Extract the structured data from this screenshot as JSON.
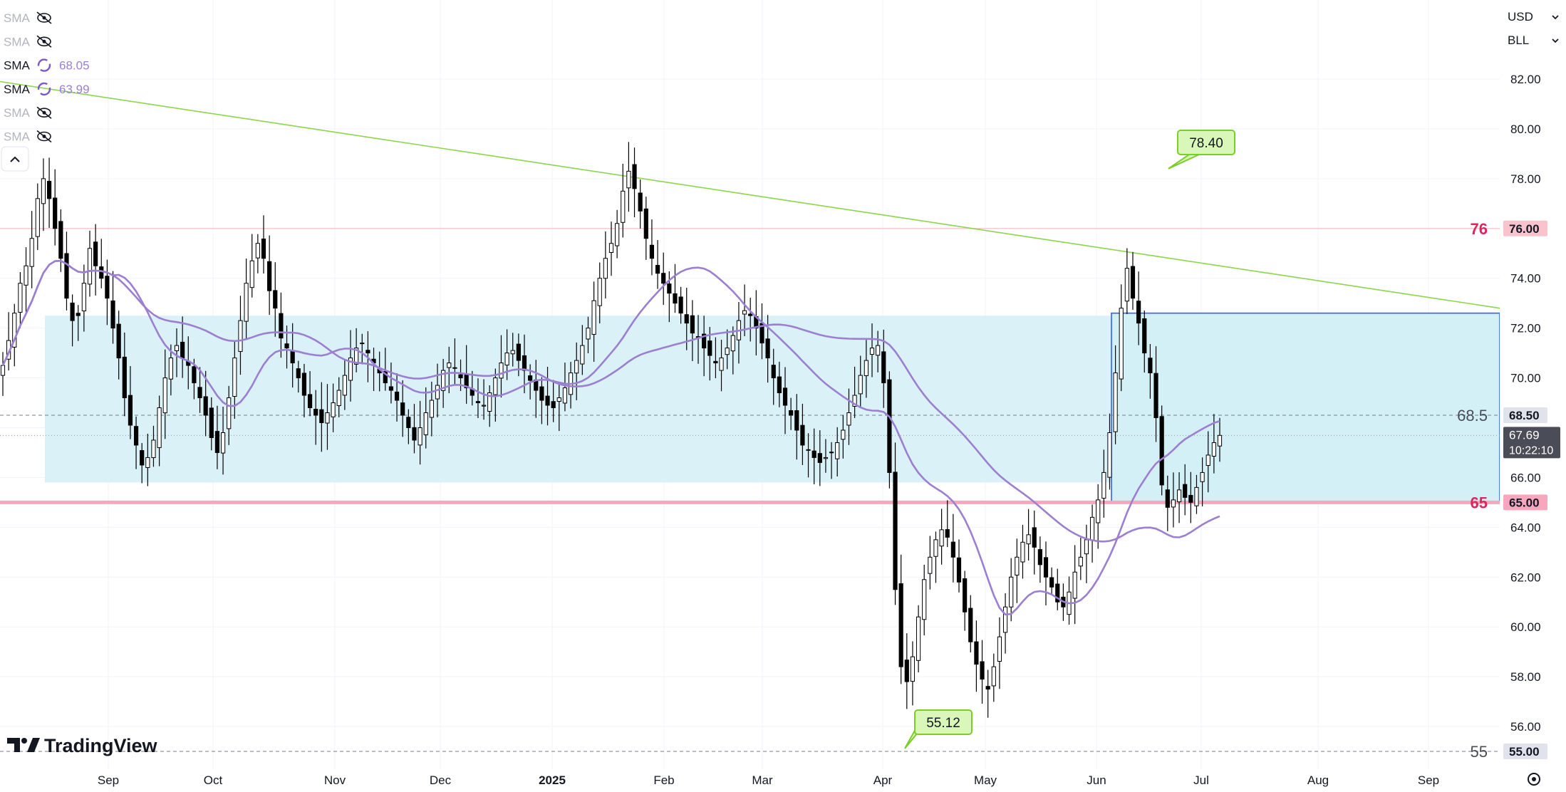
{
  "header": {
    "currency": "USD",
    "unit": "BLL",
    "dropdown_icon": "chevron-down-icon",
    "collapse_icon": "chevron-up-icon"
  },
  "indicators": [
    {
      "label": "SMA",
      "icon": "eye-off-icon",
      "value": "",
      "visible": false
    },
    {
      "label": "SMA",
      "icon": "eye-off-icon",
      "value": "",
      "visible": false
    },
    {
      "label": "SMA",
      "icon": "loading-icon",
      "value": "68.05",
      "visible": true
    },
    {
      "label": "SMA",
      "icon": "loading-icon",
      "value": "63.99",
      "visible": true
    },
    {
      "label": "SMA",
      "icon": "eye-off-icon",
      "value": "",
      "visible": false
    },
    {
      "label": "SMA",
      "icon": "eye-off-icon",
      "value": "",
      "visible": false
    }
  ],
  "brand": {
    "name": "TradingView",
    "logo_icon": "tradingview-logo-icon"
  },
  "settings_icon": "settings-gear-icon",
  "colors": {
    "up_candle": "#ffffff",
    "down_candle": "#000000",
    "sma_line": "#9c7fd0",
    "trend_line": "#8bd64a",
    "zone_fill": "#daf1f7",
    "box_border": "#2962ff",
    "support_line": "#f7a6bd",
    "resistance_line": "#f8c3cc",
    "level_label": "#e0245e",
    "callout_fill": "#d9f7b8",
    "callout_border": "#7ccd2a"
  },
  "chart_data": {
    "type": "candlestick",
    "y_range": [
      55,
      82.5
    ],
    "y_ticks": [
      "82.00",
      "80.00",
      "78.00",
      "76.00",
      "74.00",
      "72.00",
      "70.00",
      "68.00",
      "66.00",
      "64.00",
      "62.00",
      "60.00",
      "58.00",
      "56.00",
      "55.00"
    ],
    "x_ticks": [
      "Sep",
      "Oct",
      "Nov",
      "Dec",
      "2025",
      "Feb",
      "Mar",
      "Apr",
      "May",
      "Jun",
      "Jul",
      "Aug",
      "Sep"
    ],
    "last_price": {
      "value": "67.69",
      "countdown": "10:22:10"
    },
    "levels": [
      {
        "value": 76,
        "label": "76",
        "axis_label": "76.00",
        "style": "solid"
      },
      {
        "value": 68.5,
        "label": "68.5",
        "axis_label": "68.50",
        "style": "dashed"
      },
      {
        "value": 65,
        "label": "65",
        "axis_label": "65.00",
        "style": "thick"
      },
      {
        "value": 55,
        "label": "55",
        "axis_label": "55.00",
        "style": "dashed"
      }
    ],
    "zone": {
      "from_month": "Aug",
      "to_month": "Jul",
      "low": 65.8,
      "high": 72.5
    },
    "box": {
      "low": 65.0,
      "high": 72.6
    },
    "callouts": [
      {
        "label": "78.40",
        "value": 78.4,
        "position": "high"
      },
      {
        "label": "55.12",
        "value": 55.12,
        "position": "low"
      }
    ],
    "trendline": {
      "start": 81.9,
      "end": 72.8
    },
    "closes": [
      70.5,
      71.5,
      72.6,
      73.8,
      74.5,
      75.6,
      77.2,
      78.0,
      77.2,
      76.0,
      74.8,
      73.2,
      72.3,
      72.5,
      73.8,
      75.2,
      74.5,
      74.0,
      73.2,
      72.0,
      70.8,
      69.2,
      68.1,
      67.3,
      66.5,
      66.8,
      67.5,
      68.8,
      70.0,
      70.8,
      71.3,
      70.8,
      70.5,
      69.8,
      69.2,
      68.5,
      67.6,
      67.0,
      67.8,
      69.2,
      70.8,
      72.3,
      73.8,
      74.7,
      75.4,
      74.8,
      73.5,
      72.8,
      71.6,
      71.2,
      70.6,
      70.0,
      69.3,
      68.8,
      68.5,
      68.2,
      68.6,
      69.0,
      69.5,
      70.1,
      70.8,
      71.2,
      71.4,
      71.0,
      70.6,
      70.2,
      69.8,
      69.5,
      69.1,
      68.5,
      68.0,
      67.5,
      68.0,
      68.6,
      69.1,
      69.7,
      70.3,
      70.6,
      70.4,
      70.0,
      69.6,
      69.3,
      69.0,
      68.9,
      69.4,
      70.0,
      70.6,
      71.0,
      71.1,
      70.7,
      70.3,
      69.9,
      69.5,
      69.1,
      68.9,
      68.8,
      69.2,
      69.6,
      70.2,
      70.7,
      71.3,
      72.0,
      73.1,
      74.0,
      74.8,
      75.4,
      76.2,
      77.5,
      78.3,
      77.6,
      76.7,
      75.6,
      74.8,
      74.2,
      73.8,
      73.4,
      73.0,
      72.6,
      72.2,
      71.8,
      71.6,
      71.2,
      70.9,
      70.6,
      70.8,
      71.2,
      71.7,
      72.3,
      72.7,
      72.5,
      72.0,
      71.4,
      70.8,
      70.0,
      69.4,
      68.9,
      68.5,
      67.9,
      67.3,
      67.1,
      66.8,
      66.6,
      66.8,
      67.0,
      67.4,
      67.9,
      68.6,
      69.3,
      70.1,
      70.7,
      71.2,
      71.3,
      69.8,
      66.2,
      61.5,
      58.4,
      57.8,
      58.8,
      60.4,
      61.9,
      62.8,
      63.5,
      63.9,
      63.6,
      62.8,
      61.8,
      60.6,
      59.4,
      58.5,
      57.9,
      57.5,
      58.4,
      59.6,
      60.8,
      62.0,
      62.8,
      63.4,
      63.7,
      63.2,
      62.5,
      62.0,
      61.6,
      61.0,
      60.8,
      61.4,
      62.2,
      62.8,
      63.5,
      64.4,
      65.1,
      66.2,
      67.8,
      70.2,
      72.8,
      74.4,
      73.2,
      72.2,
      71.0,
      70.2,
      68.4,
      65.7,
      64.8,
      65.1,
      65.5,
      65.2,
      65.0,
      65.6,
      66.2,
      66.9,
      67.4,
      67.69
    ]
  }
}
